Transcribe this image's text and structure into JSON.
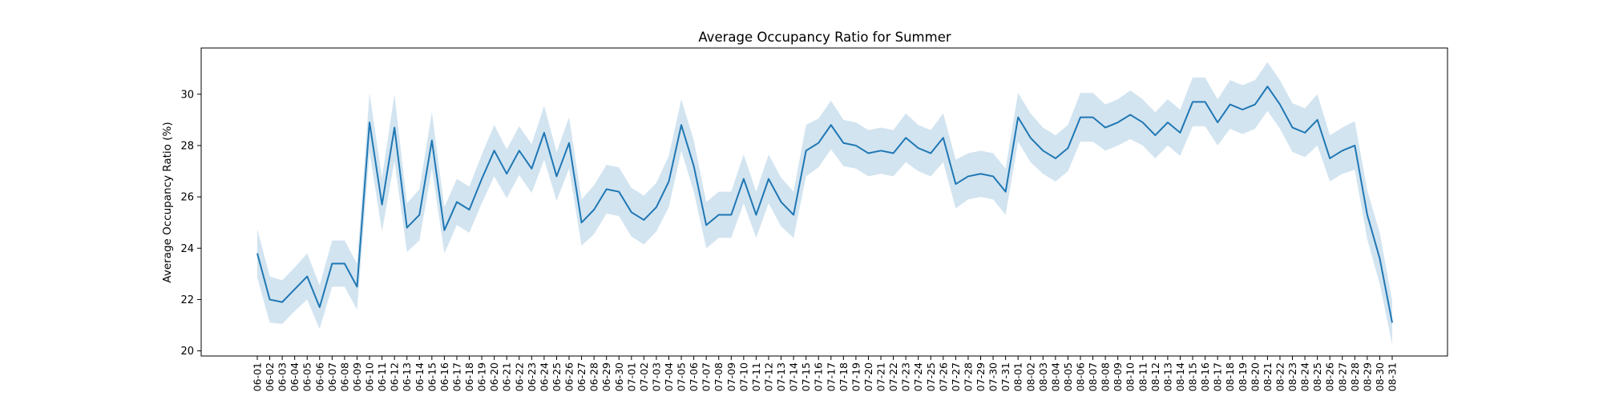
{
  "chart_data": {
    "type": "line",
    "title": "Average Occupancy Ratio for Summer",
    "xlabel": "",
    "ylabel": "Average Occupancy Ratio (%)",
    "ylim": [
      19.8,
      31.8
    ],
    "yticks": [
      20,
      22,
      24,
      26,
      28,
      30
    ],
    "grid": false,
    "line_color": "#1f77b4",
    "band_color": "#1f77b4",
    "categories": [
      "06-01",
      "06-02",
      "06-03",
      "06-04",
      "06-05",
      "06-06",
      "06-07",
      "06-08",
      "06-09",
      "06-10",
      "06-11",
      "06-12",
      "06-13",
      "06-14",
      "06-15",
      "06-16",
      "06-17",
      "06-18",
      "06-19",
      "06-20",
      "06-21",
      "06-22",
      "06-23",
      "06-24",
      "06-25",
      "06-26",
      "06-27",
      "06-28",
      "06-29",
      "06-30",
      "07-01",
      "07-02",
      "07-03",
      "07-04",
      "07-05",
      "07-06",
      "07-07",
      "07-08",
      "07-09",
      "07-10",
      "07-11",
      "07-12",
      "07-13",
      "07-14",
      "07-15",
      "07-16",
      "07-17",
      "07-18",
      "07-19",
      "07-20",
      "07-21",
      "07-22",
      "07-23",
      "07-24",
      "07-25",
      "07-26",
      "07-27",
      "07-28",
      "07-29",
      "07-30",
      "07-31",
      "08-01",
      "08-02",
      "08-03",
      "08-04",
      "08-05",
      "08-06",
      "08-07",
      "08-08",
      "08-09",
      "08-10",
      "08-11",
      "08-12",
      "08-13",
      "08-14",
      "08-15",
      "08-16",
      "08-17",
      "08-18",
      "08-19",
      "08-20",
      "08-21",
      "08-22",
      "08-23",
      "08-24",
      "08-25",
      "08-26",
      "08-27",
      "08-28",
      "08-29",
      "08-30",
      "08-31"
    ],
    "series": [
      {
        "values": [
          23.8,
          22.0,
          21.9,
          22.4,
          22.9,
          21.7,
          23.4,
          23.4,
          22.5,
          28.9,
          25.7,
          28.7,
          24.8,
          25.3,
          28.2,
          24.7,
          25.8,
          25.5,
          26.7,
          27.8,
          26.9,
          27.8,
          27.1,
          28.5,
          26.8,
          28.1,
          25.0,
          25.5,
          26.3,
          26.2,
          25.4,
          25.1,
          25.6,
          26.6,
          28.8,
          27.2,
          24.9,
          25.3,
          25.3,
          26.7,
          25.3,
          26.7,
          25.8,
          25.3,
          27.8,
          28.1,
          28.8,
          28.1,
          28.0,
          27.7,
          27.8,
          27.7,
          28.3,
          27.9,
          27.7,
          28.3,
          26.5,
          26.8,
          26.9,
          26.8,
          26.2,
          29.1,
          28.3,
          27.8,
          27.5,
          27.9,
          29.1,
          29.1,
          28.7,
          28.9,
          29.2,
          28.9,
          28.4,
          28.9,
          28.5,
          29.7,
          29.7,
          28.9,
          29.6,
          29.4,
          29.6,
          30.3,
          29.6,
          28.7,
          28.5,
          29.0,
          27.5,
          27.8,
          28.0,
          25.3,
          23.6,
          21.1
        ],
        "ci_half_width": [
          0.95,
          0.9,
          0.85,
          0.85,
          0.9,
          0.85,
          0.9,
          0.9,
          0.9,
          1.15,
          1.05,
          1.3,
          0.95,
          1.0,
          1.1,
          0.9,
          0.9,
          0.9,
          0.95,
          1.0,
          0.95,
          0.95,
          0.95,
          1.05,
          0.95,
          1.0,
          0.9,
          0.95,
          0.95,
          0.95,
          0.95,
          0.95,
          0.95,
          1.0,
          1.0,
          1.0,
          0.9,
          0.9,
          0.9,
          0.95,
          0.9,
          0.95,
          0.95,
          0.9,
          1.0,
          0.95,
          0.95,
          0.9,
          0.9,
          0.9,
          0.9,
          0.9,
          0.95,
          0.9,
          0.9,
          0.95,
          0.95,
          0.9,
          0.9,
          0.9,
          0.9,
          0.95,
          0.95,
          0.9,
          0.9,
          0.9,
          0.95,
          0.95,
          0.9,
          0.9,
          0.95,
          0.9,
          0.9,
          0.9,
          0.9,
          0.95,
          0.95,
          0.9,
          0.95,
          0.95,
          0.95,
          0.95,
          0.95,
          0.95,
          0.95,
          1.0,
          0.9,
          0.9,
          0.95,
          0.95,
          1.0,
          0.85
        ]
      }
    ]
  }
}
